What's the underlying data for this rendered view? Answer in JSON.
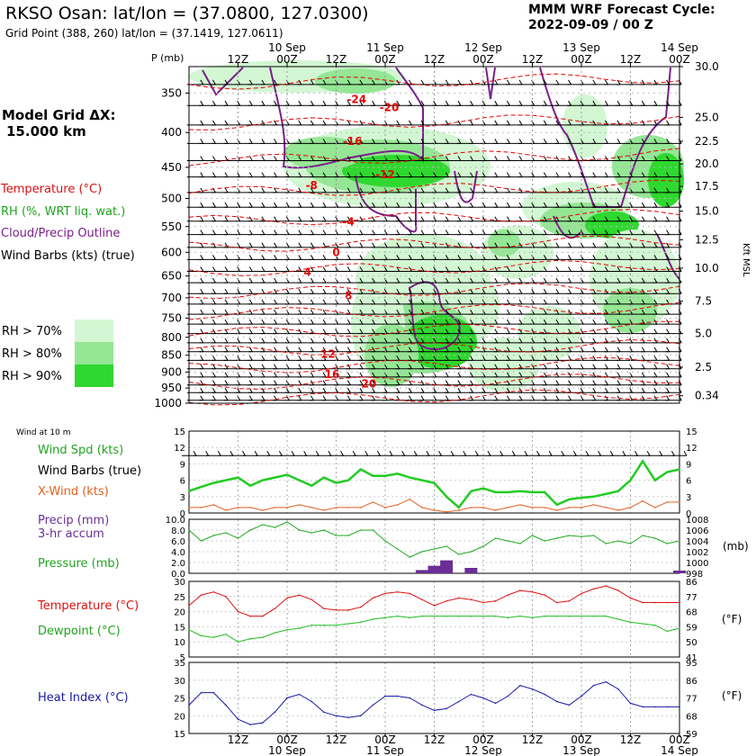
{
  "header": {
    "station": "RKSO Osan:",
    "latlon": "lat/lon = (37.0800, 127.0300)",
    "grid_point": "Grid Point (388, 260) lat/lon = (37.1419, 127.0611)",
    "model_line1": "MMM WRF Forecast Cycle:",
    "model_line2": "2022-09-09 / 00  Z"
  },
  "legend": {
    "grid_title": "Model Grid ΔX:",
    "grid_value": "15.000 km",
    "temperature": "Temperature (°C)",
    "rh": "RH (%, WRT liq. wat.)",
    "cloud": "Cloud/Precip Outline",
    "wind": "Wind Barbs (kts) (true)",
    "rh70": "RH > 70%",
    "rh80": "RH > 80%",
    "rh90": "RH > 90%"
  },
  "colors": {
    "rh70": "#d2f7d2",
    "rh80": "#95e695",
    "rh90": "#2fd82f",
    "temperature": "#e60000",
    "cloud": "#7a1f8a",
    "wind_speed": "#22cc22",
    "x_wind": "#e06020",
    "precip": "#6a2e96",
    "pressure": "#22aa22",
    "dewpoint": "#22bb22",
    "heat_index": "#1a1aa6",
    "label_blue": "#1a1aa6",
    "label_purple": "#6a2e96"
  },
  "time_axis": {
    "hour_labels": [
      "12Z",
      "00Z",
      "12Z",
      "00Z",
      "12Z",
      "00Z",
      "12Z",
      "00Z",
      "12Z",
      "00Z"
    ],
    "hour_positions": [
      12,
      24,
      36,
      48,
      60,
      72,
      84,
      96,
      108,
      120
    ],
    "date_labels": [
      "10 Sep",
      "11 Sep",
      "12 Sep",
      "13 Sep",
      "14 Sep"
    ],
    "date_positions": [
      24,
      48,
      72,
      96,
      120
    ],
    "range_hours": [
      0,
      120
    ]
  },
  "chart_data": [
    {
      "type": "heatmap",
      "title": "Time–height cross-section",
      "ylabel": "P (mb)",
      "y2label": "Kft MSL",
      "pressure_ticks": [
        350,
        400,
        450,
        500,
        550,
        600,
        650,
        700,
        750,
        800,
        850,
        900,
        950,
        1000
      ],
      "pressure_range": [
        320,
        1000
      ],
      "kft_ticks": [
        {
          "p": 320,
          "label": "30.0"
        },
        {
          "p": 380,
          "label": "25.0"
        },
        {
          "p": 412,
          "label": "22.5"
        },
        {
          "p": 445,
          "label": "20.0"
        },
        {
          "p": 480,
          "label": "17.5"
        },
        {
          "p": 522,
          "label": "15.0"
        },
        {
          "p": 575,
          "label": "12.5"
        },
        {
          "p": 633,
          "label": "10.0"
        },
        {
          "p": 708,
          "label": "7.5"
        },
        {
          "p": 790,
          "label": "5.0"
        },
        {
          "p": 885,
          "label": "2.5"
        },
        {
          "p": 975,
          "label": "0.34"
        }
      ],
      "temperature_contour_labels": [
        {
          "t": 41,
          "p": 362,
          "label": "-24"
        },
        {
          "t": 49,
          "p": 372,
          "label": "-20"
        },
        {
          "t": 40,
          "p": 417,
          "label": "-16"
        },
        {
          "t": 48,
          "p": 467,
          "label": "-12"
        },
        {
          "t": 30,
          "p": 484,
          "label": "-8"
        },
        {
          "t": 39,
          "p": 548,
          "label": "-4"
        },
        {
          "t": 36,
          "p": 608,
          "label": "0"
        },
        {
          "t": 29,
          "p": 650,
          "label": "4"
        },
        {
          "t": 39,
          "p": 703,
          "label": "8"
        },
        {
          "t": 34,
          "p": 857,
          "label": "12"
        },
        {
          "t": 35,
          "p": 918,
          "label": "16"
        },
        {
          "t": 44,
          "p": 948,
          "label": "20"
        }
      ]
    },
    {
      "type": "line",
      "title": "Wind at 10 m",
      "legend": [
        "Wind Spd (kts)",
        "Wind Barbs (true)",
        "X-Wind (kts)"
      ],
      "ylim": [
        0,
        15
      ],
      "yticks": [
        0,
        3,
        6,
        9,
        12,
        15
      ],
      "x": [
        0,
        3,
        6,
        9,
        12,
        15,
        18,
        21,
        24,
        27,
        30,
        33,
        36,
        39,
        42,
        45,
        48,
        51,
        54,
        57,
        60,
        63,
        66,
        69,
        72,
        75,
        78,
        81,
        84,
        87,
        90,
        93,
        96,
        99,
        102,
        105,
        108,
        111,
        114,
        117,
        120
      ],
      "series": [
        {
          "name": "Wind Spd (kts)",
          "values": [
            4,
            4.8,
            5.5,
            6,
            6.5,
            5,
            6,
            6.5,
            7,
            6,
            5,
            6.5,
            5.5,
            6,
            8,
            6.8,
            6.8,
            7.2,
            6.5,
            6,
            5.5,
            3,
            1,
            4,
            4.5,
            3.8,
            3.8,
            4,
            3.8,
            3.8,
            1.5,
            2.5,
            2.8,
            3,
            3.5,
            4,
            6,
            9.5,
            6,
            7.5,
            8
          ]
        },
        {
          "name": "X-Wind (kts)",
          "values": [
            1,
            1,
            1.5,
            0.5,
            1,
            1,
            0.5,
            1,
            1,
            1.5,
            1,
            0.5,
            1,
            1,
            1,
            2,
            1,
            1.5,
            2.5,
            1,
            0.5,
            0.2,
            0.5,
            1,
            1,
            0.5,
            1,
            1.5,
            1,
            1,
            0.5,
            1,
            1,
            1.5,
            1,
            0.5,
            1,
            2.2,
            1,
            2,
            2
          ]
        }
      ]
    },
    {
      "type": "line",
      "title": "Precip / Pressure",
      "legend": [
        "Precip (mm)",
        "3-hr accum",
        "Pressure (mb)"
      ],
      "ylim": [
        0,
        10
      ],
      "yticks": [
        0,
        2,
        4,
        6,
        8,
        10
      ],
      "ytick_labels": [
        "0.0",
        "2.0",
        "4.0",
        "6.0",
        "8.0",
        "10.0"
      ],
      "y2lim": [
        998,
        1008
      ],
      "y2ticks": [
        998,
        1000,
        1002,
        1004,
        1006,
        1008
      ],
      "y2label": "(mb)",
      "precip_bars": [
        {
          "x": 57,
          "value": 0.6
        },
        {
          "x": 60,
          "value": 1.4
        },
        {
          "x": 63,
          "value": 2.4
        },
        {
          "x": 69,
          "value": 1.0
        },
        {
          "x": 120,
          "value": 0.5
        }
      ],
      "pressure": {
        "x": [
          0,
          3,
          6,
          9,
          12,
          15,
          18,
          21,
          24,
          27,
          30,
          33,
          36,
          39,
          42,
          45,
          48,
          51,
          54,
          57,
          60,
          63,
          66,
          69,
          72,
          75,
          78,
          81,
          84,
          87,
          90,
          93,
          96,
          99,
          102,
          105,
          108,
          111,
          114,
          117,
          120
        ],
        "values": [
          1006,
          1004,
          1005,
          1005.5,
          1004.5,
          1006,
          1007,
          1006.5,
          1007.5,
          1006,
          1005.5,
          1006,
          1005,
          1005,
          1006,
          1006,
          1004,
          1002.5,
          1001,
          1002,
          1002.5,
          1003,
          1001.5,
          1002,
          1003,
          1004.5,
          1004,
          1003.5,
          1005,
          1004,
          1004.5,
          1005,
          1004.8,
          1005,
          1003.5,
          1004,
          1003.5,
          1005,
          1004.5,
          1003.5,
          1004
        ]
      }
    },
    {
      "type": "line",
      "title": "Temperature / Dewpoint",
      "legend": [
        "Temperature (°C)",
        "Dewpoint (°C)"
      ],
      "ylim": [
        5,
        30
      ],
      "yticks": [
        5,
        10,
        15,
        20,
        25,
        30
      ],
      "y2label": "(°F)",
      "y2ticks": [
        41,
        50,
        59,
        68,
        77,
        86
      ],
      "x": [
        0,
        3,
        6,
        9,
        12,
        15,
        18,
        21,
        24,
        27,
        30,
        33,
        36,
        39,
        42,
        45,
        48,
        51,
        54,
        57,
        60,
        63,
        66,
        69,
        72,
        75,
        78,
        81,
        84,
        87,
        90,
        93,
        96,
        99,
        102,
        105,
        108,
        111,
        114,
        117,
        120
      ],
      "series": [
        {
          "name": "Temperature (°C)",
          "values": [
            22,
            25.5,
            26.5,
            25,
            20,
            18.5,
            18.5,
            21,
            24.5,
            25.5,
            24,
            21,
            20.5,
            20.5,
            21.5,
            24.5,
            26,
            26.5,
            26,
            24,
            22,
            23.5,
            24.5,
            24,
            23,
            23.5,
            25.5,
            27,
            26.5,
            25.5,
            23,
            23.5,
            26,
            27.5,
            28.5,
            27,
            24.5,
            23,
            23,
            23,
            23
          ]
        },
        {
          "name": "Dewpoint (°C)",
          "values": [
            14,
            12,
            11.5,
            12.5,
            10,
            11,
            11.5,
            13,
            14,
            14.5,
            15.5,
            15.5,
            15.5,
            16,
            16.5,
            17.5,
            18,
            18.5,
            18,
            18.5,
            18.5,
            18.5,
            18.5,
            18.5,
            18.5,
            18.5,
            18,
            18.5,
            18,
            18.5,
            18.5,
            18.5,
            18.5,
            18.5,
            18.5,
            17.5,
            16.5,
            16,
            15.5,
            13.5,
            14.5
          ]
        }
      ]
    },
    {
      "type": "line",
      "title": "Heat Index",
      "legend": [
        "Heat Index (°C)"
      ],
      "ylim": [
        15,
        35
      ],
      "yticks": [
        15,
        20,
        25,
        30,
        35
      ],
      "y2label": "(°F)",
      "y2ticks": [
        59,
        68,
        77,
        86,
        95
      ],
      "x": [
        0,
        3,
        6,
        9,
        12,
        15,
        18,
        21,
        24,
        27,
        30,
        33,
        36,
        39,
        42,
        45,
        48,
        51,
        54,
        57,
        60,
        63,
        66,
        69,
        72,
        75,
        78,
        81,
        84,
        87,
        90,
        93,
        96,
        99,
        102,
        105,
        108,
        111,
        114,
        117,
        120
      ],
      "series": [
        {
          "name": "Heat Index (°C)",
          "values": [
            23,
            26.5,
            26.5,
            23,
            19,
            17.5,
            18,
            21,
            25,
            26,
            24,
            21,
            20,
            19.5,
            20,
            23,
            25.5,
            25.5,
            25,
            23,
            21.5,
            22,
            24,
            26,
            25,
            23.5,
            25.5,
            28.5,
            27.5,
            26,
            24,
            23,
            25.5,
            28.5,
            29.5,
            27.5,
            23.5,
            22.5,
            22.5,
            22.5,
            22.5
          ]
        }
      ]
    }
  ]
}
